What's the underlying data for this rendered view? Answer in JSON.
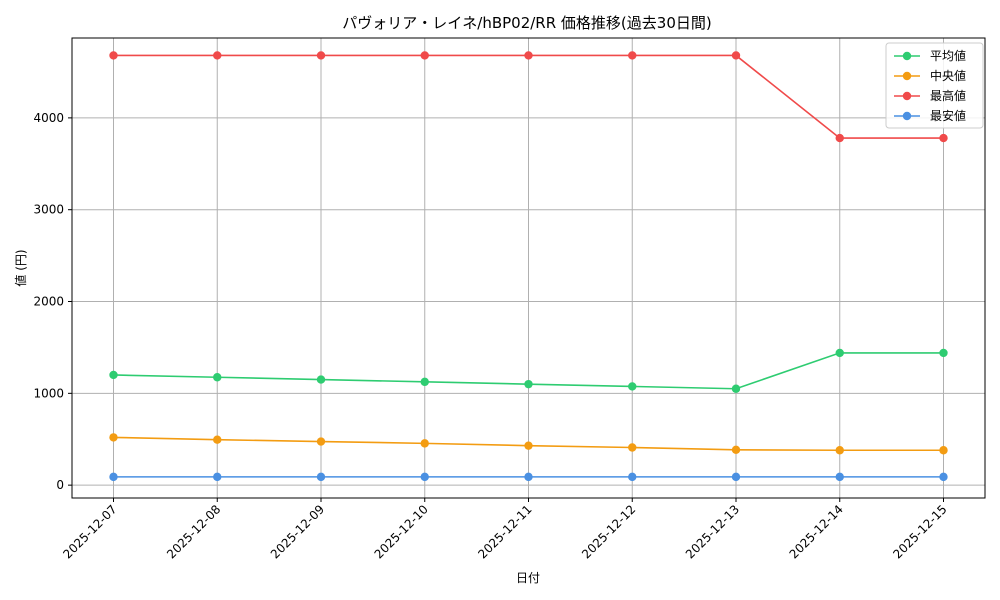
{
  "chart_data": {
    "type": "line",
    "title": "パヴォリア・レイネ/hBP02/RR 価格推移(過去30日間)",
    "xlabel": "日付",
    "ylabel": "値 (円)",
    "categories": [
      "2025-12-07",
      "2025-12-08",
      "2025-12-09",
      "2025-12-10",
      "2025-12-11",
      "2025-12-12",
      "2025-12-13",
      "2025-12-14",
      "2025-12-15"
    ],
    "ylim": [
      -140,
      4870
    ],
    "yticks": [
      0,
      1000,
      2000,
      3000,
      4000
    ],
    "grid": true,
    "legend_position": "top-right",
    "series": [
      {
        "name": "平均値",
        "color": "#2ecc71",
        "values": [
          1200,
          1175,
          1150,
          1125,
          1100,
          1075,
          1050,
          1440,
          1440
        ]
      },
      {
        "name": "中央値",
        "color": "#f39c12",
        "values": [
          520,
          495,
          475,
          455,
          430,
          410,
          385,
          380,
          380
        ]
      },
      {
        "name": "最高値",
        "color": "#f04a4a",
        "values": [
          4680,
          4680,
          4680,
          4680,
          4680,
          4680,
          4680,
          3780,
          3780
        ]
      },
      {
        "name": "最安値",
        "color": "#4a90e2",
        "values": [
          90,
          90,
          90,
          90,
          90,
          90,
          90,
          90,
          90
        ]
      }
    ]
  }
}
